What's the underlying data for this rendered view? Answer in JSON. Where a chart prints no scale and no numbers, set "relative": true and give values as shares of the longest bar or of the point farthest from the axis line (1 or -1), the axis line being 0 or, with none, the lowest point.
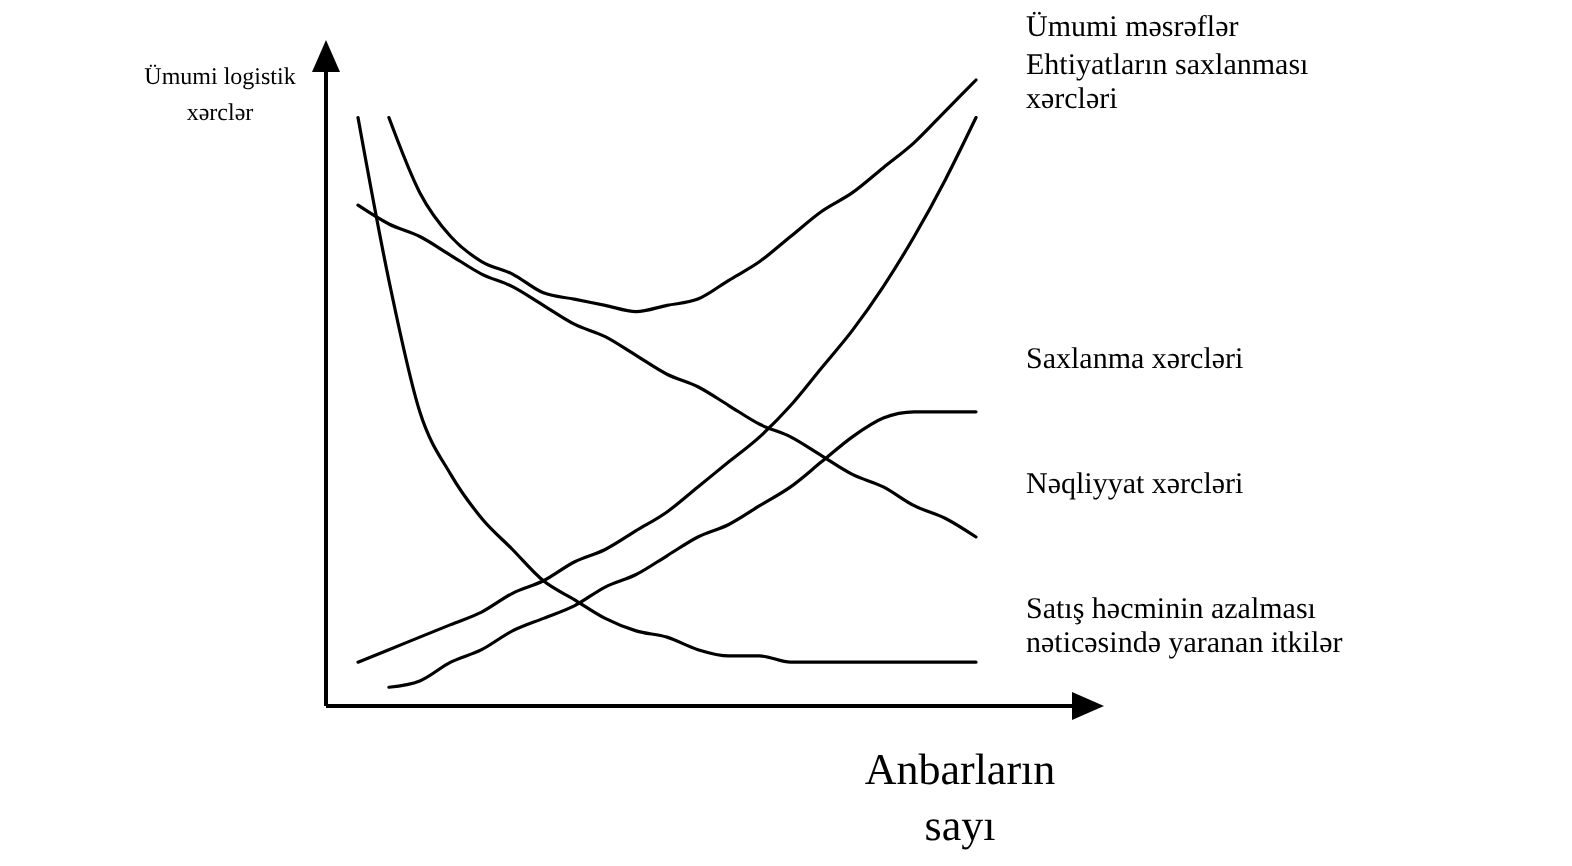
{
  "chart_data": {
    "type": "line",
    "relative": true,
    "xlabel": "Anbarların sayı",
    "ylabel": "Ümumi logistik xərclər",
    "categories": [
      null,
      null,
      null,
      null,
      null,
      null,
      null,
      null,
      null,
      null,
      null,
      null,
      null,
      null,
      null,
      null,
      null,
      null,
      null,
      null,
      null
    ],
    "series": [
      {
        "name": "Ümumi məsrəflər",
        "color": "#000000",
        "values": [
          null,
          0.94,
          0.82,
          0.75,
          0.71,
          0.69,
          0.66,
          0.65,
          0.64,
          0.63,
          0.64,
          0.65,
          0.68,
          0.71,
          0.75,
          0.79,
          0.82,
          0.86,
          0.9,
          0.95,
          1.0
        ]
      },
      {
        "name": "Ehtiyatların saxlanması xərcləri",
        "color": "#000000",
        "values": [
          0.07,
          0.09,
          0.11,
          0.13,
          0.15,
          0.18,
          0.2,
          0.23,
          0.25,
          0.28,
          0.31,
          0.35,
          0.39,
          0.43,
          0.48,
          0.54,
          0.6,
          0.67,
          0.75,
          0.84,
          0.94
        ]
      },
      {
        "name": "Saxlanma xərcləri",
        "color": "#000000",
        "values": [
          null,
          0.03,
          0.04,
          0.07,
          0.09,
          0.12,
          0.14,
          0.16,
          0.19,
          0.21,
          0.24,
          0.27,
          0.29,
          0.32,
          0.35,
          0.39,
          0.43,
          0.46,
          0.47,
          0.47,
          0.47
        ]
      },
      {
        "name": "Nəqliyyat xərcləri",
        "color": "#000000",
        "values": [
          0.8,
          0.77,
          0.75,
          0.72,
          0.69,
          0.67,
          0.64,
          0.61,
          0.59,
          0.56,
          0.53,
          0.51,
          0.48,
          0.45,
          0.43,
          0.4,
          0.37,
          0.35,
          0.32,
          0.3,
          0.27
        ]
      },
      {
        "name": "Satış həcminin azalması nəticəsində yaranan itkilər",
        "color": "#000000",
        "values": [
          0.94,
          0.68,
          0.47,
          0.37,
          0.3,
          0.25,
          0.2,
          0.17,
          0.14,
          0.12,
          0.11,
          0.09,
          0.08,
          0.08,
          0.07,
          0.07,
          0.07,
          0.07,
          0.07,
          0.07,
          0.07
        ]
      }
    ]
  }
}
